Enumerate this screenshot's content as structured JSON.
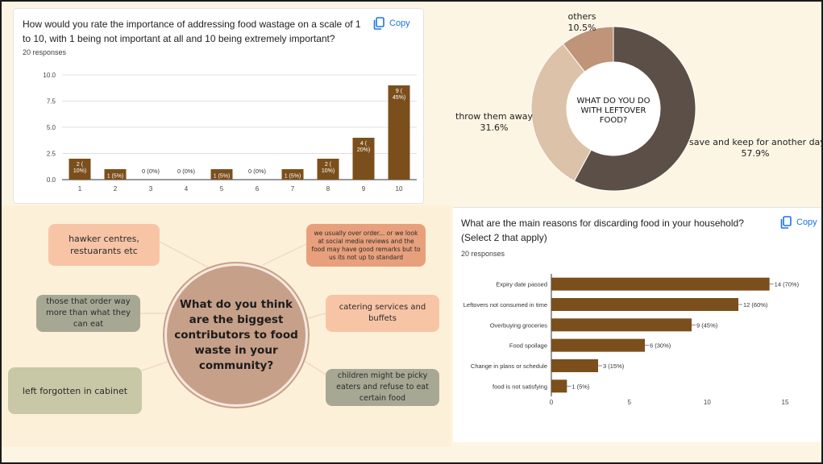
{
  "rating_card": {
    "question": "How would you rate the importance of addressing food wastage on a scale of 1 to 10, with 1 being not important at all and 10 being extremely important?",
    "responses": "20 responses",
    "copy_label": "Copy"
  },
  "reasons_card": {
    "question": "What are the main reasons for discarding food in your household? (Select 2 that apply)",
    "responses": "20 responses",
    "copy_label": "Copy"
  },
  "leftover_donut": {
    "center_text": "WHAT DO YOU DO WITH LEFTOVER FOOD?"
  },
  "mind_map": {
    "center": "What do you think are the biggest contributors to food waste in your community?",
    "nodes": {
      "hawker": "hawker centres, restuarants etc",
      "order_more": "those that order way more than what they can eat",
      "forgotten": "left forgotten in cabinet",
      "reviews": "we usually over order... or we look at social media reviews and the food may have good remarks but to us its not up to standard",
      "catering": "catering services and buffets",
      "picky": "children might be picky eaters and refuse to eat certain food"
    }
  },
  "colors": {
    "bar": "#7b4f1c",
    "donut_save": "#5b4f48",
    "donut_throw": "#dcc2a8",
    "donut_others": "#bf9478",
    "copy_blue": "#1a73e8"
  },
  "chart_data": [
    {
      "type": "bar",
      "categories": [
        "1",
        "2",
        "3",
        "4",
        "5",
        "6",
        "7",
        "8",
        "9",
        "10"
      ],
      "values": [
        2,
        1,
        0,
        0,
        1,
        0,
        1,
        2,
        4,
        9
      ],
      "data_labels": [
        "2 (10%)",
        "1 (5%)",
        "0 (0%)",
        "0 (0%)",
        "1 (5%)",
        "0 (0%)",
        "1 (5%)",
        "2 (10%)",
        "4 (20%)",
        "9 (45%)"
      ],
      "yticks": [
        "0.0",
        "2.5",
        "5.0",
        "7.5",
        "10.0"
      ],
      "ylim": [
        0,
        10
      ],
      "grid": true
    },
    {
      "type": "pie",
      "labels": [
        "save and keep for another day",
        "throw them away",
        "others"
      ],
      "values": [
        57.9,
        31.6,
        10.5
      ],
      "value_labels": [
        "57.9%",
        "31.6%",
        "10.5%"
      ]
    },
    {
      "type": "bar",
      "orientation": "horizontal",
      "categories": [
        "Expiry date passed",
        "Leftovers not consumed in time",
        "Overbuying groceries",
        "Food spoilage",
        "Change in plans or schedule",
        "food is not satisfying"
      ],
      "values": [
        14,
        12,
        9,
        6,
        3,
        1
      ],
      "data_labels": [
        "14 (70%)",
        "12 (60%)",
        "9 (45%)",
        "6 (30%)",
        "3 (15%)",
        "1 (5%)"
      ],
      "xticks": [
        "0",
        "5",
        "10",
        "15"
      ],
      "xlim": [
        0,
        15
      ]
    }
  ]
}
